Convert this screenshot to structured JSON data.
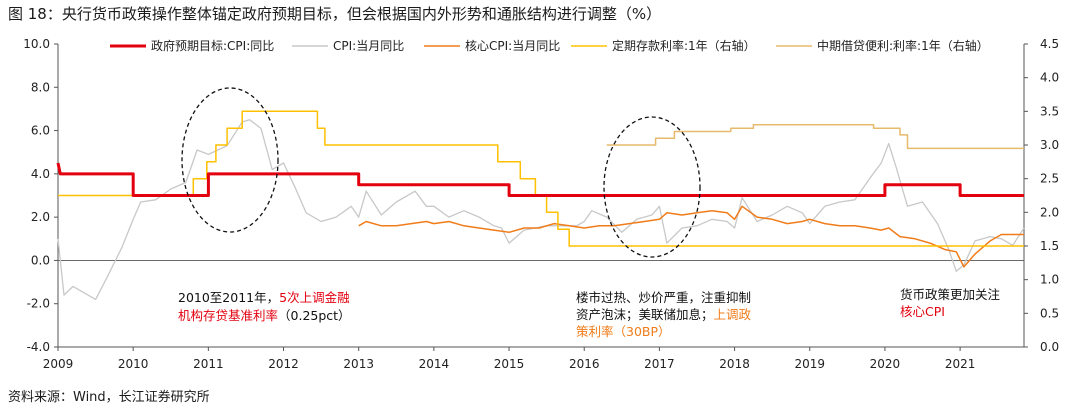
{
  "title": "图 18：央行货币政策操作整体锚定政府预期目标，但会根据国内外形势和通胀结构进行调整（%）",
  "source": "资料来源：Wind，长江证券研究所",
  "colors": {
    "target": "#e3000f",
    "cpi": "#c8c8c8",
    "core": "#f07c1a",
    "deposit": "#ffc000",
    "mlf": "#e7b96c",
    "annotation_black": "#111111",
    "annotation_red": "#e3000f",
    "annotation_orange": "#f07c1a"
  },
  "annotations": {
    "left": {
      "line1_a": "2010至2011年，",
      "line1_b": "5次上调金融",
      "line2_a": "机构存贷基准利率",
      "line2_b": "（0.25pct）"
    },
    "middle": {
      "line1": "楼市过热、炒价严重，注重抑制",
      "line2_a": "资产泡沫；美联储加息；",
      "line2_b": "上调政",
      "line3": "策利率（30BP）"
    },
    "right": {
      "line1": "货币政策更加关注",
      "line2": "核心CPI"
    }
  },
  "chart_data": {
    "type": "line",
    "title": "央行货币政策操作整体锚定政府预期目标，但会根据国内外形势和通胀结构进行调整（%）",
    "x_ticks": [
      "2009",
      "2010",
      "2011",
      "2012",
      "2013",
      "2014",
      "2015",
      "2016",
      "2017",
      "2018",
      "2019",
      "2020",
      "2021"
    ],
    "x_range": [
      2009.0,
      2021.85
    ],
    "y_left": {
      "min": -4.0,
      "max": 10.0,
      "ticks": [
        "-4.0",
        "-2.0",
        "0.0",
        "2.0",
        "4.0",
        "6.0",
        "8.0",
        "10.0"
      ]
    },
    "y_right": {
      "min": 0.0,
      "max": 4.5,
      "ticks": [
        "0.0",
        "0.5",
        "1.0",
        "1.5",
        "2.0",
        "2.5",
        "3.0",
        "3.5",
        "4.0",
        "4.5"
      ]
    },
    "series": [
      {
        "name": "政府预期目标:CPI:同比",
        "axis": "left",
        "color_key": "target",
        "step": true,
        "points": [
          [
            2009.0,
            4.5
          ],
          [
            2009.03,
            4.0
          ],
          [
            2010.0,
            4.0
          ],
          [
            2010.0,
            3.0
          ],
          [
            2011.0,
            3.0
          ],
          [
            2011.0,
            4.0
          ],
          [
            2013.0,
            4.0
          ],
          [
            2013.0,
            3.5
          ],
          [
            2015.0,
            3.5
          ],
          [
            2015.0,
            3.0
          ],
          [
            2020.0,
            3.0
          ],
          [
            2020.0,
            3.5
          ],
          [
            2021.0,
            3.5
          ],
          [
            2021.0,
            3.0
          ],
          [
            2021.85,
            3.0
          ]
        ]
      },
      {
        "name": "CPI:当月同比",
        "axis": "left",
        "color_key": "cpi",
        "step": false,
        "points": [
          [
            2009.0,
            1.0
          ],
          [
            2009.08,
            -1.6
          ],
          [
            2009.2,
            -1.2
          ],
          [
            2009.35,
            -1.5
          ],
          [
            2009.5,
            -1.8
          ],
          [
            2009.65,
            -0.8
          ],
          [
            2009.85,
            0.6
          ],
          [
            2010.0,
            1.9
          ],
          [
            2010.1,
            2.7
          ],
          [
            2010.3,
            2.8
          ],
          [
            2010.5,
            3.3
          ],
          [
            2010.7,
            3.6
          ],
          [
            2010.85,
            5.1
          ],
          [
            2011.0,
            4.9
          ],
          [
            2011.25,
            5.3
          ],
          [
            2011.45,
            6.4
          ],
          [
            2011.55,
            6.5
          ],
          [
            2011.7,
            6.1
          ],
          [
            2011.85,
            4.2
          ],
          [
            2012.0,
            4.5
          ],
          [
            2012.15,
            3.4
          ],
          [
            2012.3,
            2.2
          ],
          [
            2012.5,
            1.8
          ],
          [
            2012.7,
            2.0
          ],
          [
            2012.9,
            2.5
          ],
          [
            2013.0,
            2.0
          ],
          [
            2013.1,
            3.2
          ],
          [
            2013.3,
            2.1
          ],
          [
            2013.5,
            2.7
          ],
          [
            2013.75,
            3.2
          ],
          [
            2013.9,
            2.5
          ],
          [
            2014.0,
            2.5
          ],
          [
            2014.2,
            2.0
          ],
          [
            2014.4,
            2.3
          ],
          [
            2014.6,
            2.0
          ],
          [
            2014.8,
            1.6
          ],
          [
            2014.9,
            1.5
          ],
          [
            2015.0,
            0.8
          ],
          [
            2015.2,
            1.4
          ],
          [
            2015.5,
            1.6
          ],
          [
            2015.7,
            1.6
          ],
          [
            2015.9,
            1.6
          ],
          [
            2016.0,
            1.8
          ],
          [
            2016.1,
            2.3
          ],
          [
            2016.3,
            2.0
          ],
          [
            2016.5,
            1.3
          ],
          [
            2016.7,
            1.9
          ],
          [
            2016.9,
            2.1
          ],
          [
            2017.0,
            2.5
          ],
          [
            2017.1,
            0.8
          ],
          [
            2017.3,
            1.5
          ],
          [
            2017.5,
            1.6
          ],
          [
            2017.7,
            1.9
          ],
          [
            2017.9,
            1.8
          ],
          [
            2018.0,
            1.5
          ],
          [
            2018.1,
            2.9
          ],
          [
            2018.3,
            1.8
          ],
          [
            2018.5,
            2.1
          ],
          [
            2018.7,
            2.5
          ],
          [
            2018.9,
            2.2
          ],
          [
            2019.0,
            1.7
          ],
          [
            2019.2,
            2.5
          ],
          [
            2019.4,
            2.7
          ],
          [
            2019.6,
            2.8
          ],
          [
            2019.8,
            3.8
          ],
          [
            2019.95,
            4.5
          ],
          [
            2020.05,
            5.4
          ],
          [
            2020.15,
            4.3
          ],
          [
            2020.3,
            2.5
          ],
          [
            2020.5,
            2.7
          ],
          [
            2020.7,
            1.7
          ],
          [
            2020.85,
            0.5
          ],
          [
            2020.95,
            -0.5
          ],
          [
            2021.05,
            -0.2
          ],
          [
            2021.2,
            0.9
          ],
          [
            2021.4,
            1.1
          ],
          [
            2021.55,
            1.0
          ],
          [
            2021.7,
            0.7
          ],
          [
            2021.85,
            1.5
          ]
        ]
      },
      {
        "name": "核心CPI:当月同比",
        "axis": "left",
        "color_key": "core",
        "step": false,
        "points": [
          [
            2013.0,
            1.6
          ],
          [
            2013.1,
            1.8
          ],
          [
            2013.3,
            1.6
          ],
          [
            2013.5,
            1.6
          ],
          [
            2013.7,
            1.7
          ],
          [
            2013.9,
            1.8
          ],
          [
            2014.0,
            1.7
          ],
          [
            2014.2,
            1.8
          ],
          [
            2014.4,
            1.6
          ],
          [
            2014.6,
            1.5
          ],
          [
            2014.8,
            1.4
          ],
          [
            2015.0,
            1.3
          ],
          [
            2015.2,
            1.5
          ],
          [
            2015.4,
            1.5
          ],
          [
            2015.6,
            1.7
          ],
          [
            2015.8,
            1.6
          ],
          [
            2016.0,
            1.5
          ],
          [
            2016.2,
            1.6
          ],
          [
            2016.4,
            1.6
          ],
          [
            2016.6,
            1.7
          ],
          [
            2016.8,
            1.8
          ],
          [
            2017.0,
            1.9
          ],
          [
            2017.1,
            2.2
          ],
          [
            2017.3,
            2.1
          ],
          [
            2017.5,
            2.2
          ],
          [
            2017.7,
            2.3
          ],
          [
            2017.9,
            2.2
          ],
          [
            2018.0,
            1.9
          ],
          [
            2018.1,
            2.5
          ],
          [
            2018.3,
            2.0
          ],
          [
            2018.5,
            1.9
          ],
          [
            2018.7,
            1.7
          ],
          [
            2018.9,
            1.8
          ],
          [
            2019.0,
            1.9
          ],
          [
            2019.2,
            1.7
          ],
          [
            2019.4,
            1.6
          ],
          [
            2019.6,
            1.6
          ],
          [
            2019.8,
            1.5
          ],
          [
            2019.95,
            1.4
          ],
          [
            2020.05,
            1.5
          ],
          [
            2020.2,
            1.1
          ],
          [
            2020.4,
            1.0
          ],
          [
            2020.6,
            0.8
          ],
          [
            2020.8,
            0.5
          ],
          [
            2020.95,
            0.4
          ],
          [
            2021.05,
            -0.3
          ],
          [
            2021.2,
            0.3
          ],
          [
            2021.4,
            0.9
          ],
          [
            2021.55,
            1.2
          ],
          [
            2021.7,
            1.2
          ],
          [
            2021.85,
            1.2
          ]
        ]
      },
      {
        "name": "定期存款利率:1年（右轴）",
        "axis": "right",
        "color_key": "deposit",
        "step": true,
        "points": [
          [
            2009.0,
            2.25
          ],
          [
            2010.8,
            2.25
          ],
          [
            2010.8,
            2.5
          ],
          [
            2010.98,
            2.5
          ],
          [
            2010.98,
            2.75
          ],
          [
            2011.1,
            2.75
          ],
          [
            2011.1,
            3.0
          ],
          [
            2011.25,
            3.0
          ],
          [
            2011.25,
            3.25
          ],
          [
            2011.45,
            3.25
          ],
          [
            2011.45,
            3.5
          ],
          [
            2012.45,
            3.5
          ],
          [
            2012.45,
            3.25
          ],
          [
            2012.55,
            3.25
          ],
          [
            2012.55,
            3.0
          ],
          [
            2014.85,
            3.0
          ],
          [
            2014.85,
            2.75
          ],
          [
            2015.15,
            2.75
          ],
          [
            2015.15,
            2.5
          ],
          [
            2015.35,
            2.5
          ],
          [
            2015.35,
            2.25
          ],
          [
            2015.5,
            2.25
          ],
          [
            2015.5,
            2.0
          ],
          [
            2015.65,
            2.0
          ],
          [
            2015.65,
            1.75
          ],
          [
            2015.8,
            1.75
          ],
          [
            2015.8,
            1.5
          ],
          [
            2021.85,
            1.5
          ]
        ]
      },
      {
        "name": "中期借贷便利:利率:1年（右轴）",
        "axis": "right",
        "color_key": "mlf",
        "step": true,
        "points": [
          [
            2016.3,
            3.0
          ],
          [
            2016.95,
            3.0
          ],
          [
            2016.95,
            3.1
          ],
          [
            2017.2,
            3.1
          ],
          [
            2017.2,
            3.2
          ],
          [
            2017.95,
            3.2
          ],
          [
            2017.95,
            3.25
          ],
          [
            2018.25,
            3.25
          ],
          [
            2018.25,
            3.3
          ],
          [
            2019.85,
            3.3
          ],
          [
            2019.85,
            3.25
          ],
          [
            2020.2,
            3.25
          ],
          [
            2020.2,
            3.15
          ],
          [
            2020.3,
            3.15
          ],
          [
            2020.3,
            2.95
          ],
          [
            2021.85,
            2.95
          ]
        ]
      }
    ]
  }
}
